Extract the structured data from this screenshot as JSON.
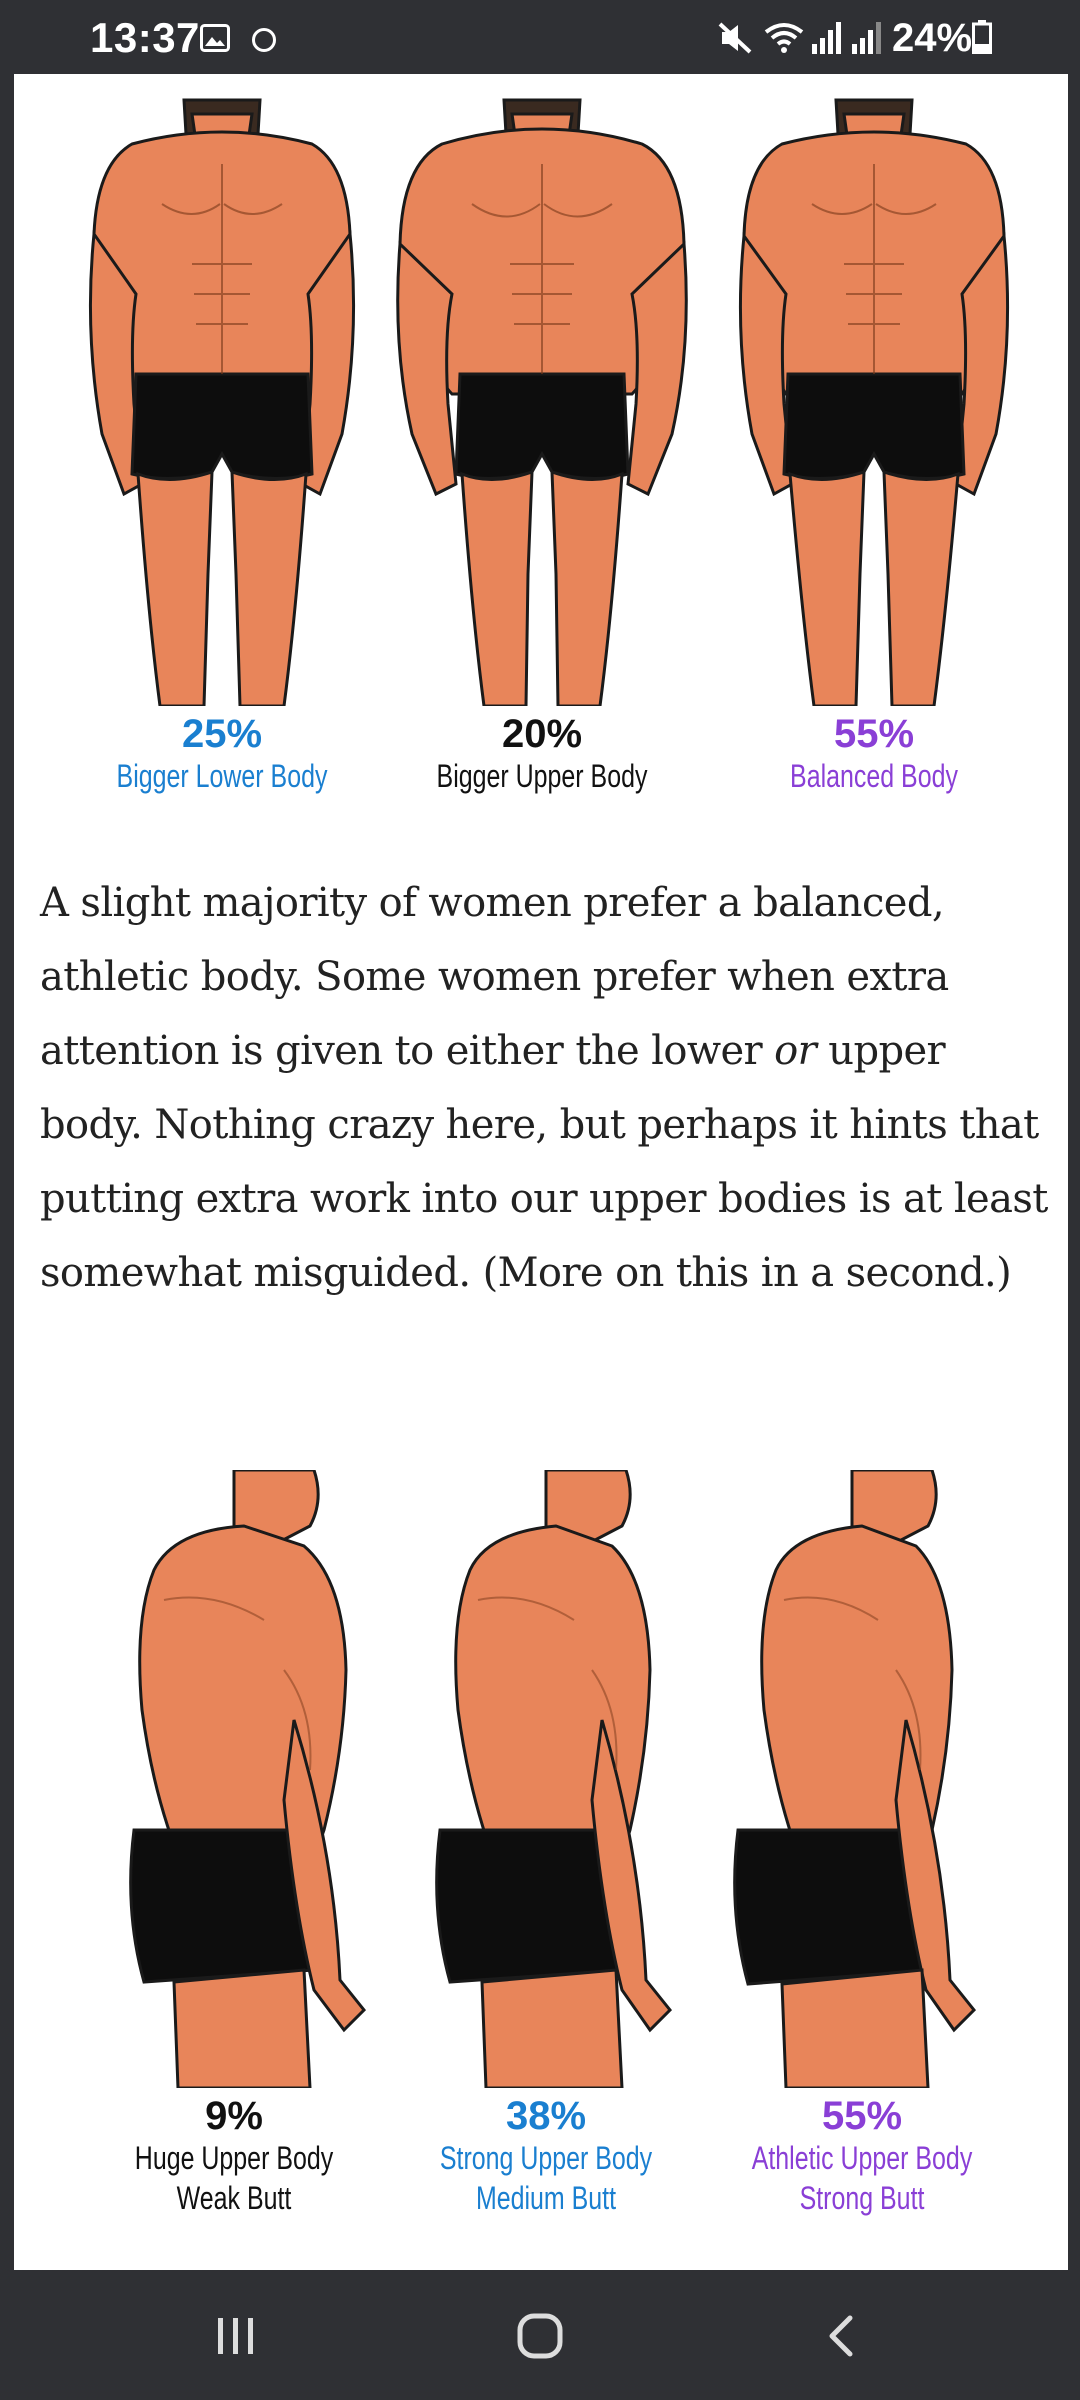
{
  "status_bar": {
    "time": "13:37",
    "battery": "24%",
    "icons": [
      "gallery-icon",
      "circle-icon",
      "mute-icon",
      "wifi-icon",
      "signal-icon",
      "signal-icon",
      "battery-icon"
    ]
  },
  "figure_front": [
    {
      "percent": "25%",
      "label": "Bigger Lower Body",
      "color": "#1a7fd0"
    },
    {
      "percent": "20%",
      "label": "Bigger Upper Body",
      "color": "#111111"
    },
    {
      "percent": "55%",
      "label": "Balanced Body",
      "color": "#8a3fd6"
    }
  ],
  "paragraph": {
    "part1": "A slight majority of women prefer a balanced, athletic body. Some women prefer when extra attention is given to either the lower ",
    "emphasis": "or",
    "part2": " upper body. Nothing crazy here, but perhaps it hints that putting extra work into our upper bodies is at least somewhat misguided. (More on this in a second.)"
  },
  "figure_side": [
    {
      "percent": "9%",
      "line1": "Huge Upper Body",
      "line2": "Weak Butt",
      "color": "#111111"
    },
    {
      "percent": "38%",
      "line1": "Strong Upper Body",
      "line2": "Medium Butt",
      "color": "#1a7fd0"
    },
    {
      "percent": "55%",
      "line1": "Athletic Upper Body",
      "line2": "Strong Butt",
      "color": "#8a3fd6"
    }
  ],
  "colors": {
    "skin": "#e8855a",
    "shorts": "#0d0d0d",
    "outline": "#1a1a1a",
    "bar": "#2f3034"
  }
}
